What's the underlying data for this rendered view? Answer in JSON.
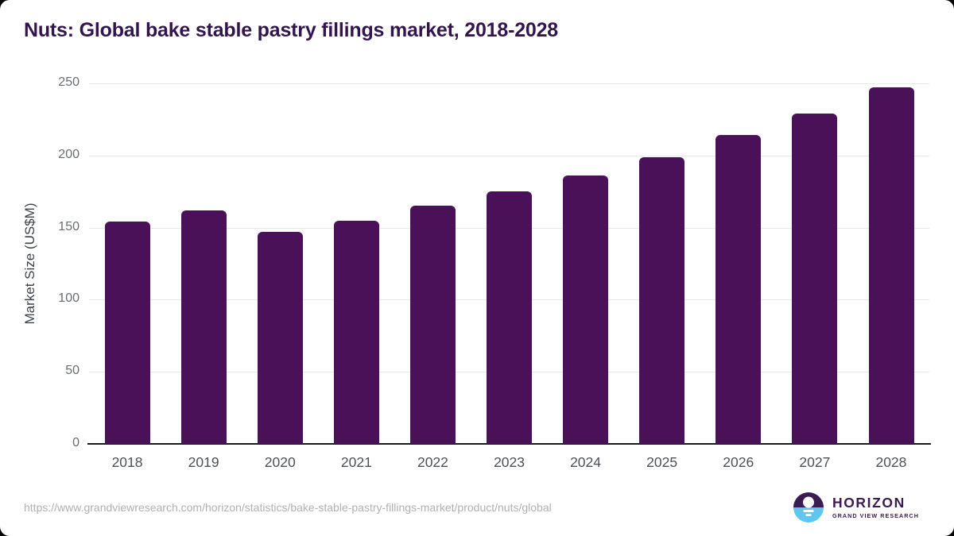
{
  "title": "Nuts: Global bake stable pastry fillings market, 2018-2028",
  "chart_data": {
    "type": "bar",
    "title": "Nuts: Global bake stable pastry fillings market, 2018-2028",
    "categories": [
      "2018",
      "2019",
      "2020",
      "2021",
      "2022",
      "2023",
      "2024",
      "2025",
      "2026",
      "2027",
      "2028"
    ],
    "values": [
      154,
      162,
      147,
      155,
      165,
      175,
      186,
      199,
      214,
      229,
      247
    ],
    "xlabel": "",
    "ylabel": "Market Size (US$M)",
    "ylim": [
      0,
      250
    ],
    "yticks": [
      0,
      50,
      100,
      150,
      200,
      250
    ],
    "grid": true,
    "legend": false,
    "bar_color": "#4a1158"
  },
  "footer": {
    "source_url": "https://www.grandviewresearch.com/horizon/statistics/bake-stable-pastry-fillings-market/product/nuts/global",
    "logo": {
      "brand": "HORIZON",
      "subbrand": "GRAND VIEW RESEARCH"
    }
  },
  "colors": {
    "bar": "#4a1158",
    "title": "#33154e",
    "axis_line": "#1a1a1e",
    "gridline": "#e9e9e9",
    "y_tick_label": "#696d72",
    "x_tick_label": "#4c5157",
    "url": "#b0b0b0",
    "logo_purple": "#3a1b52",
    "logo_blue": "#5fc6f0"
  }
}
